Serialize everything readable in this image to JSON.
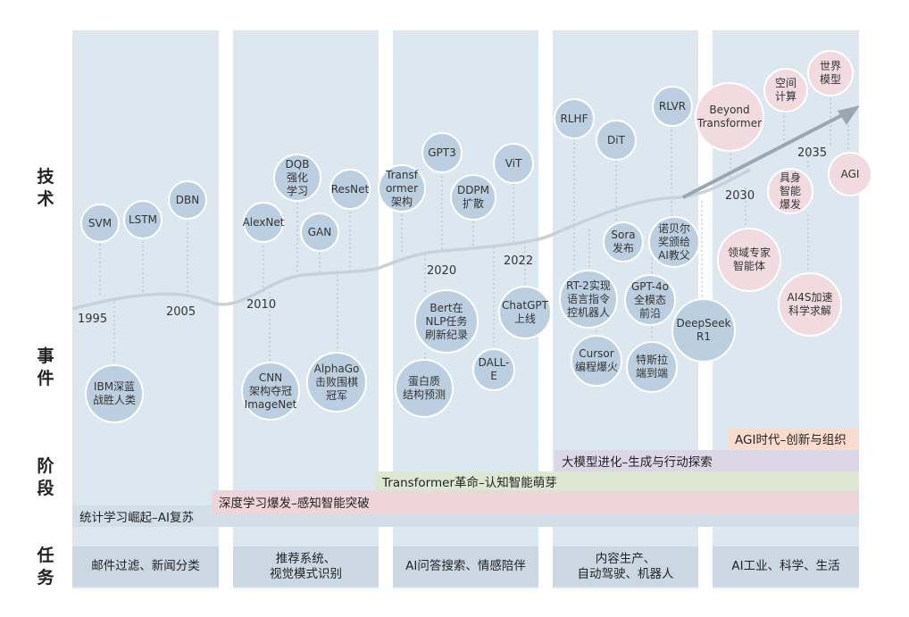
{
  "row_labels": {
    "tech_1": "技",
    "tech_2": "术",
    "event_1": "事",
    "event_2": "件",
    "stage_1": "阶",
    "stage_2": "段",
    "task_1": "任",
    "task_2": "务"
  },
  "years": {
    "y1995": "1995",
    "y2005": "2005",
    "y2010": "2010",
    "y2020": "2020",
    "y2022": "2022",
    "y2030": "2030",
    "y2035": "2035"
  },
  "tech": {
    "svm": "SVM",
    "lstm": "LSTM",
    "dbn": "DBN",
    "alexnet": "AlexNet",
    "dqb": "DQB\n强化\n学习",
    "gan": "GAN",
    "resnet": "ResNet",
    "transformer": "Transf\normer\n架构",
    "gpt3": "GPT3",
    "ddpm": "DDPM\n扩散",
    "vit": "ViT",
    "rlhf": "RLHF",
    "dit": "DiT",
    "rlvr": "RLVR",
    "beyond": "Beyond\nTransformer",
    "spatial": "空间\n计算",
    "world": "世界\n模型",
    "embodied": "具身\n智能\n爆发",
    "agi": "AGI"
  },
  "events": {
    "ibm": "IBM深蓝\n战胜人类",
    "cnn": "CNN\n架构夺冠\nImageNet",
    "alphago": "AlphaGo\n击败围棋\n冠军",
    "bert": "Bert在\nNLP任务\n刷新纪录",
    "protein": "蛋白质\n结构预测",
    "dalle": "DALL-E",
    "chatgpt": "ChatGPT\n上线",
    "rt2": "RT-2实现\n语言指令\n控机器人",
    "cursor": "Cursor\n编程爆火",
    "sora": "Sora\n发布",
    "nobel": "诺贝尔\n奖颁给\nAI教父",
    "gpt4o": "GPT-4o\n全模态\n前沿",
    "tesla": "特斯拉\n端到端",
    "deepseek": "DeepSeek\nR1",
    "agents": "领域专家\n智能体",
    "ai4s": "AI4S加速\n科学求解"
  },
  "stages": {
    "statistical": "统计学习崛起–AI复苏",
    "deep": "深度学习爆发–感知智能突破",
    "transformer": "Transformer革命–认知智能萌芽",
    "llm": "大模型进化–生成与行动探索",
    "agi": "AGI时代–创新与组织"
  },
  "tasks": {
    "t1": "邮件过滤、新闻分类",
    "t2": "推荐系统、\n视觉模式识别",
    "t3": "AI问答搜索、情感陪伴",
    "t4": "内容生产、\n自动驾驶、机器人",
    "t5": "AI工业、科学、生活"
  },
  "colors": {
    "column_bg": "#dde7ef",
    "bubble_blue": "#bccfe0",
    "bubble_pink": "#f1dbe0",
    "stage_statistical": "#d2dfe9",
    "stage_deep": "#efd4d9",
    "stage_transformer": "#dce8d3",
    "stage_llm": "#dcd7e6",
    "stage_agi": "#f9dccd",
    "task_bg": "#cbd8e4",
    "trend_line": "#c9d1d8",
    "trend_arrow": "#9aa7b1"
  }
}
